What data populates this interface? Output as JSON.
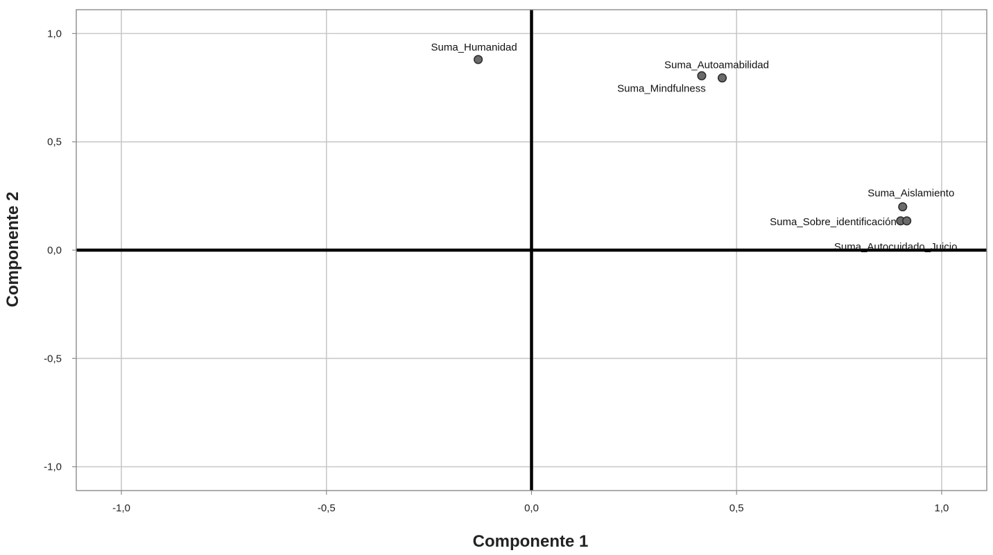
{
  "chart_data": {
    "type": "scatter",
    "title": "",
    "xlabel": "Componente 1",
    "ylabel": "Componente 2",
    "xlim": [
      -1.11,
      1.11
    ],
    "ylim": [
      -1.11,
      1.11
    ],
    "xticks": [
      -1.0,
      -0.5,
      0.0,
      0.5,
      1.0
    ],
    "yticks": [
      -1.0,
      -0.5,
      0.0,
      0.5,
      1.0
    ],
    "xtick_labels": [
      "-1,0",
      "-0,5",
      "0,0",
      "0,5",
      "1,0"
    ],
    "ytick_labels": [
      "-1,0",
      "-0,5",
      "0,0",
      "0,5",
      "1,0"
    ],
    "grid": true,
    "points": [
      {
        "label": "Suma_Humanidad",
        "x": -0.13,
        "y": 0.88
      },
      {
        "label": "Suma_Autoamabilidad",
        "x": 0.465,
        "y": 0.795
      },
      {
        "label": "Suma_Mindfulness",
        "x": 0.415,
        "y": 0.805
      },
      {
        "label": "Suma_Aislamiento",
        "x": 0.905,
        "y": 0.2
      },
      {
        "label": "Suma_Sobre_identificación",
        "x": 0.9,
        "y": 0.135
      },
      {
        "label": "Suma_Autocuidado_Juicio",
        "x": 0.915,
        "y": 0.135
      }
    ]
  }
}
